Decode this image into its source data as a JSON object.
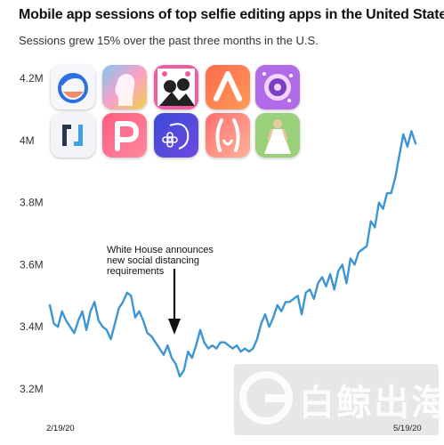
{
  "title": "Mobile app sessions of top selfie editing apps in the United States",
  "subtitle": "Sessions grew 15% over the past three months in the U.S.",
  "annotation": {
    "lines": [
      "White House announces",
      "new social distancing",
      "requirements"
    ]
  },
  "watermark": {
    "text": "白鲸出海"
  },
  "apps": [
    {
      "icon": "facetune-icon",
      "colors": [
        "#f4f6f9",
        "#2f6fe0",
        "#f08a6b"
      ]
    },
    {
      "icon": "face-silhouette-icon",
      "colors": [
        "#f9a0c8",
        "#7ec8f0",
        "#f2d14b"
      ]
    },
    {
      "icon": "photo-collage-icon",
      "colors": [
        "#f05ca0",
        "#ffffff",
        "#222222"
      ]
    },
    {
      "icon": "letter-a-icon",
      "colors": [
        "#ff6b4a",
        "#ff9a5a",
        "#ffffff"
      ]
    },
    {
      "icon": "camera-lens-icon",
      "colors": [
        "#b26be8",
        "#f2d4ff",
        "#7a3fc2"
      ]
    },
    {
      "icon": "bracket-logo-icon",
      "colors": [
        "#f2f4f7",
        "#2a3550",
        "#3fa0e8"
      ]
    },
    {
      "icon": "letter-p-icon",
      "colors": [
        "#ff5a7e",
        "#ff8aa0",
        "#ffffff"
      ]
    },
    {
      "icon": "flower-face-icon",
      "colors": [
        "#3b4ad8",
        "#6f4ae0",
        "#ffffff"
      ]
    },
    {
      "icon": "body-shape-icon",
      "colors": [
        "#ff6f6f",
        "#ffb199",
        "#ffffff"
      ]
    },
    {
      "icon": "dress-figure-icon",
      "colors": [
        "#9bd07a",
        "#ffffff",
        "#e8c8a0"
      ]
    }
  ],
  "chart_data": {
    "type": "line",
    "title": "Mobile app sessions of top selfie editing apps in the United States",
    "subtitle": "Sessions grew 15% over the past three months in the U.S.",
    "color": "#3d95d4",
    "yticks": [
      "3.2M",
      "3.4M",
      "3.6M",
      "3.8M",
      "4M",
      "4.2M"
    ],
    "ytick_values": [
      3.2,
      3.4,
      3.6,
      3.8,
      4.0,
      4.2
    ],
    "ylim": [
      3.2,
      4.2
    ],
    "xticks": [
      "2/19/20",
      "5/19/20"
    ],
    "xlim": [
      "2020-02-19",
      "2020-05-19"
    ],
    "grid": false,
    "annotation_date": "2020-03-16",
    "series": [
      {
        "x": [
          "2020-02-19",
          "2020-02-20",
          "2020-02-21",
          "2020-02-22",
          "2020-02-23",
          "2020-02-24",
          "2020-02-25",
          "2020-02-26",
          "2020-02-27",
          "2020-02-28",
          "2020-02-29",
          "2020-03-01",
          "2020-03-02",
          "2020-03-03",
          "2020-03-04",
          "2020-03-05",
          "2020-03-06",
          "2020-03-07",
          "2020-03-08",
          "2020-03-09",
          "2020-03-10",
          "2020-03-11",
          "2020-03-12",
          "2020-03-13",
          "2020-03-14",
          "2020-03-15",
          "2020-03-16",
          "2020-03-17",
          "2020-03-18",
          "2020-03-19",
          "2020-03-20",
          "2020-03-21",
          "2020-03-22",
          "2020-03-23",
          "2020-03-24",
          "2020-03-25",
          "2020-03-26",
          "2020-03-27",
          "2020-03-28",
          "2020-03-29",
          "2020-03-30",
          "2020-03-31",
          "2020-04-01",
          "2020-04-02",
          "2020-04-03",
          "2020-04-04",
          "2020-04-05",
          "2020-04-06",
          "2020-04-07",
          "2020-04-08",
          "2020-04-09",
          "2020-04-10",
          "2020-04-11",
          "2020-04-12",
          "2020-04-13",
          "2020-04-14",
          "2020-04-15",
          "2020-04-16",
          "2020-04-17",
          "2020-04-18",
          "2020-04-19",
          "2020-04-20",
          "2020-04-21",
          "2020-04-22",
          "2020-04-23",
          "2020-04-24",
          "2020-04-25",
          "2020-04-26",
          "2020-04-27",
          "2020-04-28",
          "2020-04-29",
          "2020-04-30",
          "2020-05-01",
          "2020-05-02",
          "2020-05-03",
          "2020-05-04",
          "2020-05-05",
          "2020-05-06",
          "2020-05-07",
          "2020-05-08",
          "2020-05-09",
          "2020-05-10",
          "2020-05-11",
          "2020-05-12",
          "2020-05-13",
          "2020-05-14",
          "2020-05-15",
          "2020-05-16",
          "2020-05-17",
          "2020-05-18",
          "2020-05-19"
        ],
        "values": [
          3.47,
          3.41,
          3.4,
          3.45,
          3.42,
          3.4,
          3.38,
          3.42,
          3.45,
          3.39,
          3.45,
          3.48,
          3.42,
          3.4,
          3.39,
          3.36,
          3.41,
          3.46,
          3.48,
          3.51,
          3.5,
          3.43,
          3.45,
          3.42,
          3.38,
          3.37,
          3.35,
          3.33,
          3.31,
          3.34,
          3.3,
          3.28,
          3.24,
          3.26,
          3.32,
          3.3,
          3.34,
          3.39,
          3.35,
          3.33,
          3.34,
          3.33,
          3.35,
          3.35,
          3.34,
          3.33,
          3.34,
          3.32,
          3.33,
          3.32,
          3.33,
          3.36,
          3.41,
          3.44,
          3.4,
          3.43,
          3.47,
          3.45,
          3.48,
          3.48,
          3.49,
          3.5,
          3.44,
          3.51,
          3.52,
          3.49,
          3.54,
          3.56,
          3.53,
          3.57,
          3.52,
          3.58,
          3.6,
          3.54,
          3.62,
          3.6,
          3.64,
          3.65,
          3.66,
          3.74,
          3.72,
          3.8,
          3.78,
          3.83,
          3.83,
          3.88,
          3.95,
          4.02,
          3.98,
          4.03,
          3.99
        ]
      }
    ]
  }
}
